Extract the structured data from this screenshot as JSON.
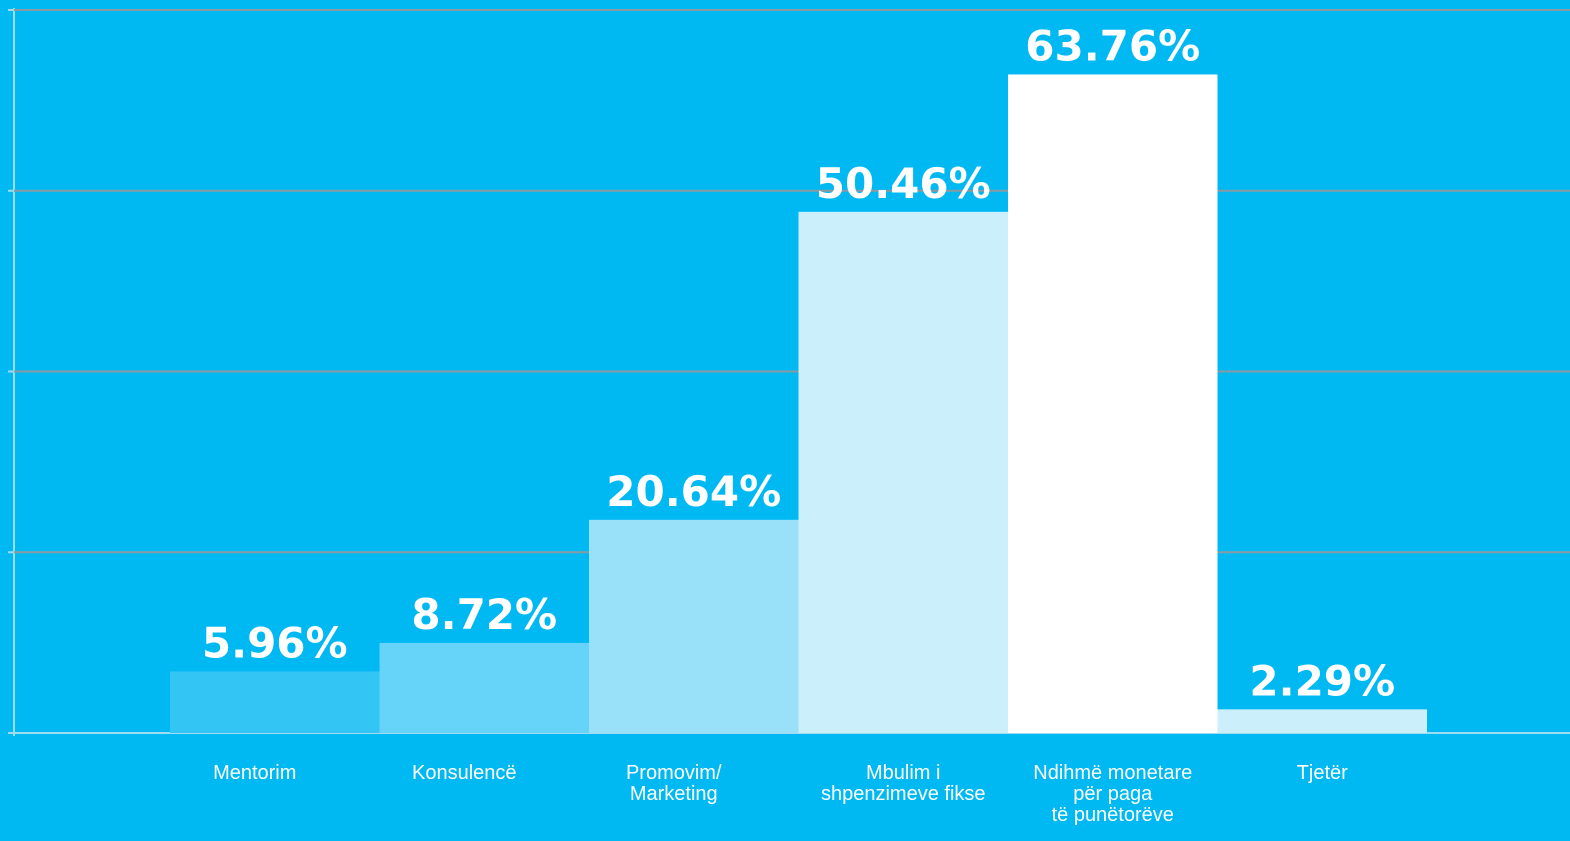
{
  "chart_data": {
    "type": "bar",
    "categories": [
      "Mentorim",
      "Konsulencë",
      "Promovim/\nMarketing",
      "Mbulim i\nshpenzimeve fikse",
      "Ndihmë monetare\npër paga\ntë punëtorëve",
      "Tjetër"
    ],
    "values": [
      5.96,
      8.72,
      20.64,
      50.46,
      63.76,
      2.29
    ],
    "value_labels": [
      "5.96%",
      "8.72%",
      "20.64%",
      "50.46%",
      "63.76%",
      "2.29%"
    ],
    "colors": [
      "#33c6f4",
      "#66d4f8",
      "#99e1f9",
      "#ccf0fb",
      "#ffffff",
      "#ccf0fb"
    ],
    "ylim": [
      0,
      70
    ],
    "yticks": [
      0,
      17.5,
      35,
      52.5,
      70
    ],
    "grid": true
  }
}
